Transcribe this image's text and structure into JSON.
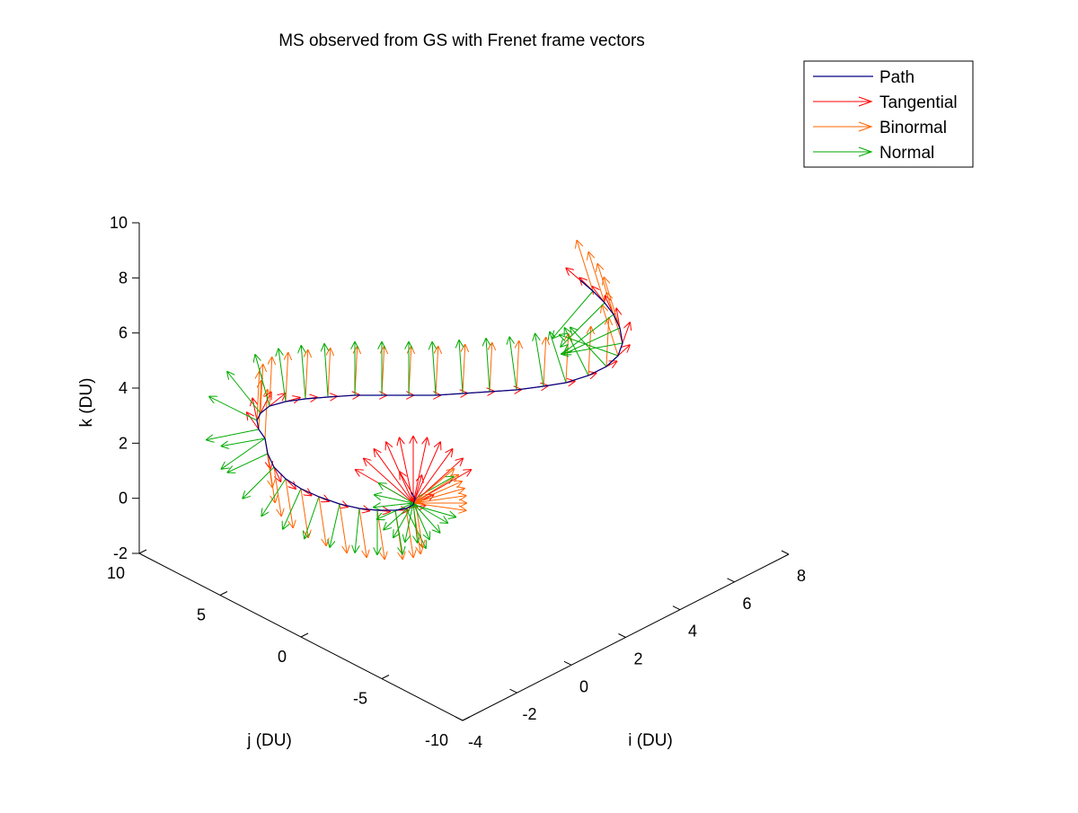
{
  "chart_data": {
    "type": "line",
    "projection": "3d",
    "title": "MS observed from GS with Frenet frame vectors",
    "xlabel": "i (DU)",
    "ylabel": "j (DU)",
    "zlabel": "k (DU)",
    "xlim": [
      -4,
      8
    ],
    "ylim": [
      -10,
      10
    ],
    "zlim": [
      -2,
      10
    ],
    "xticks": [
      "-4",
      "-2",
      "0",
      "2",
      "4",
      "6",
      "8"
    ],
    "yticks": [
      "-10",
      "-5",
      "0",
      "5",
      "10"
    ],
    "zticks": [
      "-2",
      "0",
      "2",
      "4",
      "6",
      "8",
      "10"
    ],
    "grid": false,
    "legend_position": "top-right",
    "series": [
      {
        "name": "Path",
        "kind": "line",
        "color": "#000080"
      },
      {
        "name": "Tangential",
        "kind": "quiver",
        "color": "#ff0000"
      },
      {
        "name": "Binormal",
        "kind": "quiver",
        "color": "#ff6600"
      },
      {
        "name": "Normal",
        "kind": "quiver",
        "color": "#00aa00"
      }
    ]
  }
}
